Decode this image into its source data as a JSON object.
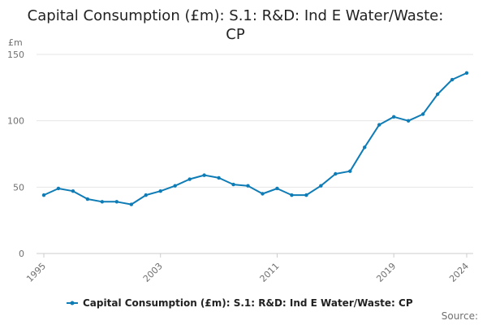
{
  "chart_data": {
    "type": "line",
    "title_lines": [
      "Capital Consumption (£m): S.1: R&D: Ind E Water/Waste:",
      "CP"
    ],
    "ylabel": "£m",
    "xlabel": "",
    "ylim": [
      0,
      150
    ],
    "yticks": [
      0,
      50,
      100,
      150
    ],
    "xlim": [
      1995,
      2024
    ],
    "xticks": [
      "1995",
      "2003",
      "2011",
      "2019",
      "2024"
    ],
    "grid": true,
    "legend_position": "bottom",
    "colors": {
      "series": "#0f7cb6",
      "grid": "#e6e6e6",
      "axis": "#cccccc"
    },
    "series": [
      {
        "name": "Capital Consumption (£m): S.1: R&D: Ind E Water/Waste: CP",
        "x": [
          1995,
          1996,
          1997,
          1998,
          1999,
          2000,
          2001,
          2002,
          2003,
          2004,
          2005,
          2006,
          2007,
          2008,
          2009,
          2010,
          2011,
          2012,
          2013,
          2014,
          2015,
          2016,
          2017,
          2018,
          2019,
          2020,
          2021,
          2022,
          2023,
          2024
        ],
        "values": [
          44,
          49,
          47,
          41,
          39,
          39,
          37,
          44,
          47,
          51,
          56,
          59,
          57,
          52,
          51,
          45,
          49,
          44,
          44,
          51,
          60,
          62,
          80,
          97,
          103,
          100,
          105,
          120,
          131,
          136
        ]
      }
    ],
    "source": "Source:"
  }
}
